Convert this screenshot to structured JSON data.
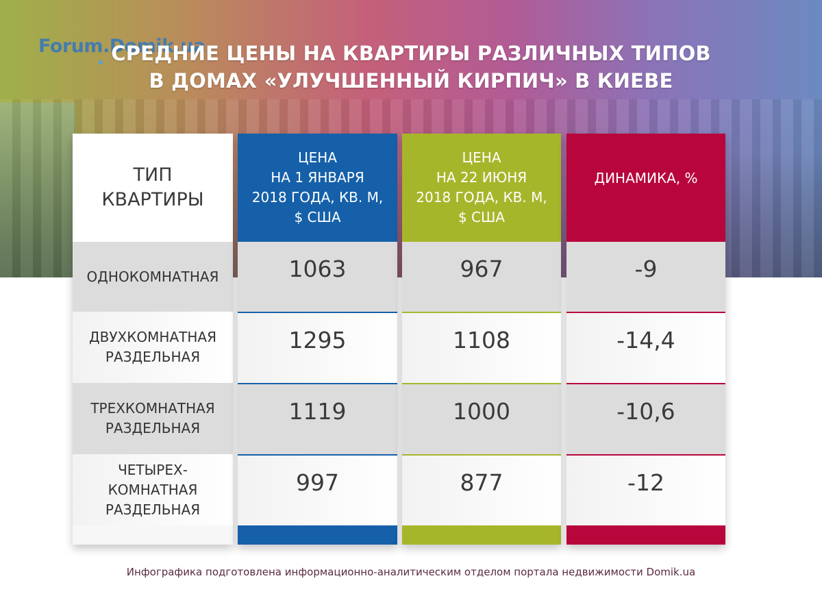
{
  "logo_text": "Forum.Domik.ua",
  "title_line1": "СРЕДНИЕ ЦЕНЫ НА КВАРТИРЫ РАЗЛИЧНЫХ ТИПОВ",
  "title_line2": "В ДОМАХ «УЛУЧШЕННЫЙ КИРПИЧ» В КИЕВЕ",
  "colors": {
    "jan": "#1560a9",
    "jun": "#a6b62b",
    "dyn": "#b8063c"
  },
  "chart_data": {
    "type": "table",
    "columns": [
      "ТИП\nКВАРТИРЫ",
      "ЦЕНА\nНА 1 ЯНВАРЯ\n2018 ГОДА, КВ. М,\n$ США",
      "ЦЕНА\nНА 22 ИЮНЯ\n2018 ГОДА, КВ. М,\n$ США",
      "ДИНАМИКА, %"
    ],
    "rows": [
      {
        "type": "ОДНОКОМНАТНАЯ",
        "jan": "1063",
        "jun": "967",
        "dyn": "-9"
      },
      {
        "type": "ДВУХКОМНАТНАЯ\nРАЗДЕЛЬНАЯ",
        "jan": "1295",
        "jun": "1108",
        "dyn": "-14,4"
      },
      {
        "type": "ТРЕХКОМНАТНАЯ\nРАЗДЕЛЬНАЯ",
        "jan": "1119",
        "jun": "1000",
        "dyn": "-10,6"
      },
      {
        "type": "ЧЕТЫРЕХ-\nКОМНАТНАЯ\nРАЗДЕЛЬНАЯ",
        "jan": "997",
        "jun": "877",
        "dyn": "-12"
      }
    ]
  },
  "footer": "Инфографика подготовлена информационно-аналитическим отделом портала недвижимости Domik.ua"
}
